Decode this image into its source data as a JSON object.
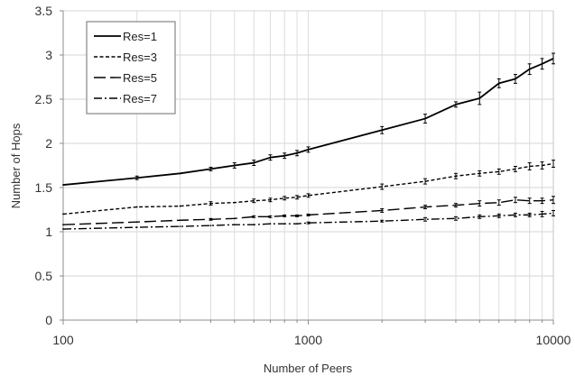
{
  "chart_data": {
    "type": "line",
    "title": "",
    "xlabel": "Number of Peers",
    "ylabel": "Number of Hops",
    "xscale": "log",
    "xlim": [
      100,
      10000
    ],
    "ylim": [
      0,
      3.5
    ],
    "x_ticks": [
      "100",
      "1000",
      "10000"
    ],
    "y_ticks": [
      "0",
      "0.5",
      "1",
      "1.5",
      "2",
      "2.5",
      "3",
      "3.5"
    ],
    "grid": true,
    "legend_position": "top-left",
    "x": [
      100,
      200,
      300,
      400,
      500,
      600,
      700,
      800,
      900,
      1000,
      2000,
      3000,
      4000,
      5000,
      6000,
      7000,
      8000,
      9000,
      10000
    ],
    "series": [
      {
        "name": "Res=1",
        "line_style": "solid",
        "values": [
          1.53,
          1.61,
          1.66,
          1.71,
          1.75,
          1.78,
          1.84,
          1.86,
          1.89,
          1.93,
          2.15,
          2.28,
          2.44,
          2.51,
          2.68,
          2.73,
          2.84,
          2.9,
          2.96
        ],
        "errors": [
          0,
          0.02,
          0,
          0.02,
          0.03,
          0.03,
          0.03,
          0.03,
          0.03,
          0.03,
          0.04,
          0.05,
          0.03,
          0.07,
          0.05,
          0.05,
          0.06,
          0.06,
          0.06
        ]
      },
      {
        "name": "Res=3",
        "line_style": "short-dash",
        "values": [
          1.2,
          1.28,
          1.29,
          1.32,
          1.33,
          1.35,
          1.36,
          1.38,
          1.39,
          1.41,
          1.51,
          1.57,
          1.63,
          1.66,
          1.68,
          1.71,
          1.74,
          1.75,
          1.77
        ],
        "errors": [
          0,
          0,
          0,
          0.02,
          0,
          0.02,
          0.02,
          0.02,
          0.02,
          0.02,
          0.03,
          0.03,
          0.03,
          0.03,
          0.03,
          0.03,
          0.04,
          0.04,
          0.04
        ]
      },
      {
        "name": "Res=5",
        "line_style": "long-dash",
        "values": [
          1.08,
          1.11,
          1.13,
          1.14,
          1.15,
          1.17,
          1.17,
          1.18,
          1.18,
          1.19,
          1.24,
          1.28,
          1.3,
          1.32,
          1.33,
          1.36,
          1.35,
          1.35,
          1.36
        ],
        "errors": [
          0,
          0,
          0,
          0.01,
          0,
          0.01,
          0.01,
          0.01,
          0.01,
          0.01,
          0.02,
          0.02,
          0.02,
          0.03,
          0.03,
          0.03,
          0.03,
          0.03,
          0.04
        ]
      },
      {
        "name": "Res=7",
        "line_style": "dash-dot",
        "values": [
          1.03,
          1.05,
          1.06,
          1.07,
          1.08,
          1.08,
          1.09,
          1.09,
          1.09,
          1.1,
          1.12,
          1.14,
          1.15,
          1.17,
          1.18,
          1.19,
          1.19,
          1.2,
          1.21
        ],
        "errors": [
          0,
          0,
          0,
          0,
          0,
          0,
          0,
          0,
          0,
          0.01,
          0.01,
          0.02,
          0.02,
          0.02,
          0.02,
          0.02,
          0.02,
          0.03,
          0.03
        ]
      }
    ]
  }
}
